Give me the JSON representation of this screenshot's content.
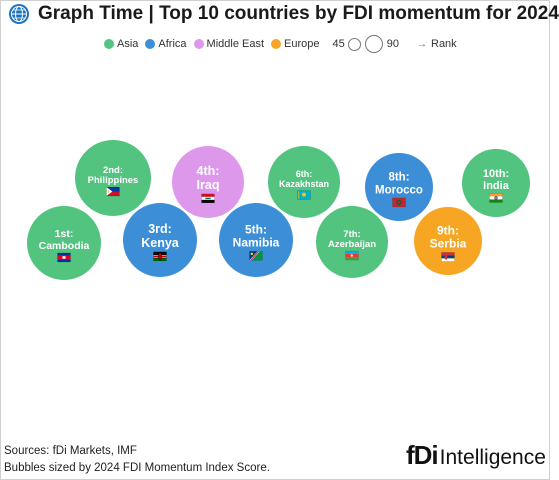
{
  "header": {
    "title": "Graph Time | Top 10 countries by FDI momentum for 2024",
    "icon": "globe-icon"
  },
  "legend": {
    "regions": [
      {
        "label": "Asia",
        "color": "#52c47f"
      },
      {
        "label": "Africa",
        "color": "#3c8fd6"
      },
      {
        "label": "Middle East",
        "color": "#dd98ec"
      },
      {
        "label": "Europe",
        "color": "#f6a623"
      }
    ],
    "size_small": "45",
    "size_large": "90",
    "rank_label": "Rank",
    "rank_icon": "arrow-right-icon"
  },
  "chart_data": {
    "type": "bubble",
    "title": "Top 10 countries by FDI momentum for 2024",
    "size_metric": "2024 FDI Momentum Index Score",
    "size_legend": [
      45,
      90
    ],
    "points": [
      {
        "rank": "1st:",
        "country": "Cambodia",
        "region": "Asia",
        "flag": "cambodia-flag-icon"
      },
      {
        "rank": "2nd:",
        "country": "Philippines",
        "region": "Asia",
        "flag": "philippines-flag-icon"
      },
      {
        "rank": "3rd:",
        "country": "Kenya",
        "region": "Africa",
        "flag": "kenya-flag-icon"
      },
      {
        "rank": "4th:",
        "country": "Iraq",
        "region": "Middle East",
        "flag": "iraq-flag-icon"
      },
      {
        "rank": "5th:",
        "country": "Namibia",
        "region": "Africa",
        "flag": "namibia-flag-icon"
      },
      {
        "rank": "6th:",
        "country": "Kazakhstan",
        "region": "Asia",
        "flag": "kazakhstan-flag-icon"
      },
      {
        "rank": "7th:",
        "country": "Azerbaijan",
        "region": "Asia",
        "flag": "azerbaijan-flag-icon"
      },
      {
        "rank": "8th:",
        "country": "Morocco",
        "region": "Africa",
        "flag": "morocco-flag-icon"
      },
      {
        "rank": "9th:",
        "country": "Serbia",
        "region": "Europe",
        "flag": "serbia-flag-icon"
      },
      {
        "rank": "10th:",
        "country": "India",
        "region": "Asia",
        "flag": "india-flag-icon"
      }
    ]
  },
  "footer": {
    "sources": "Sources: fDi Markets, IMF",
    "note": "Bubbles sized by 2024 FDI Momentum Index Score."
  },
  "brand": {
    "mark": "fDi",
    "word": "Intelligence"
  }
}
